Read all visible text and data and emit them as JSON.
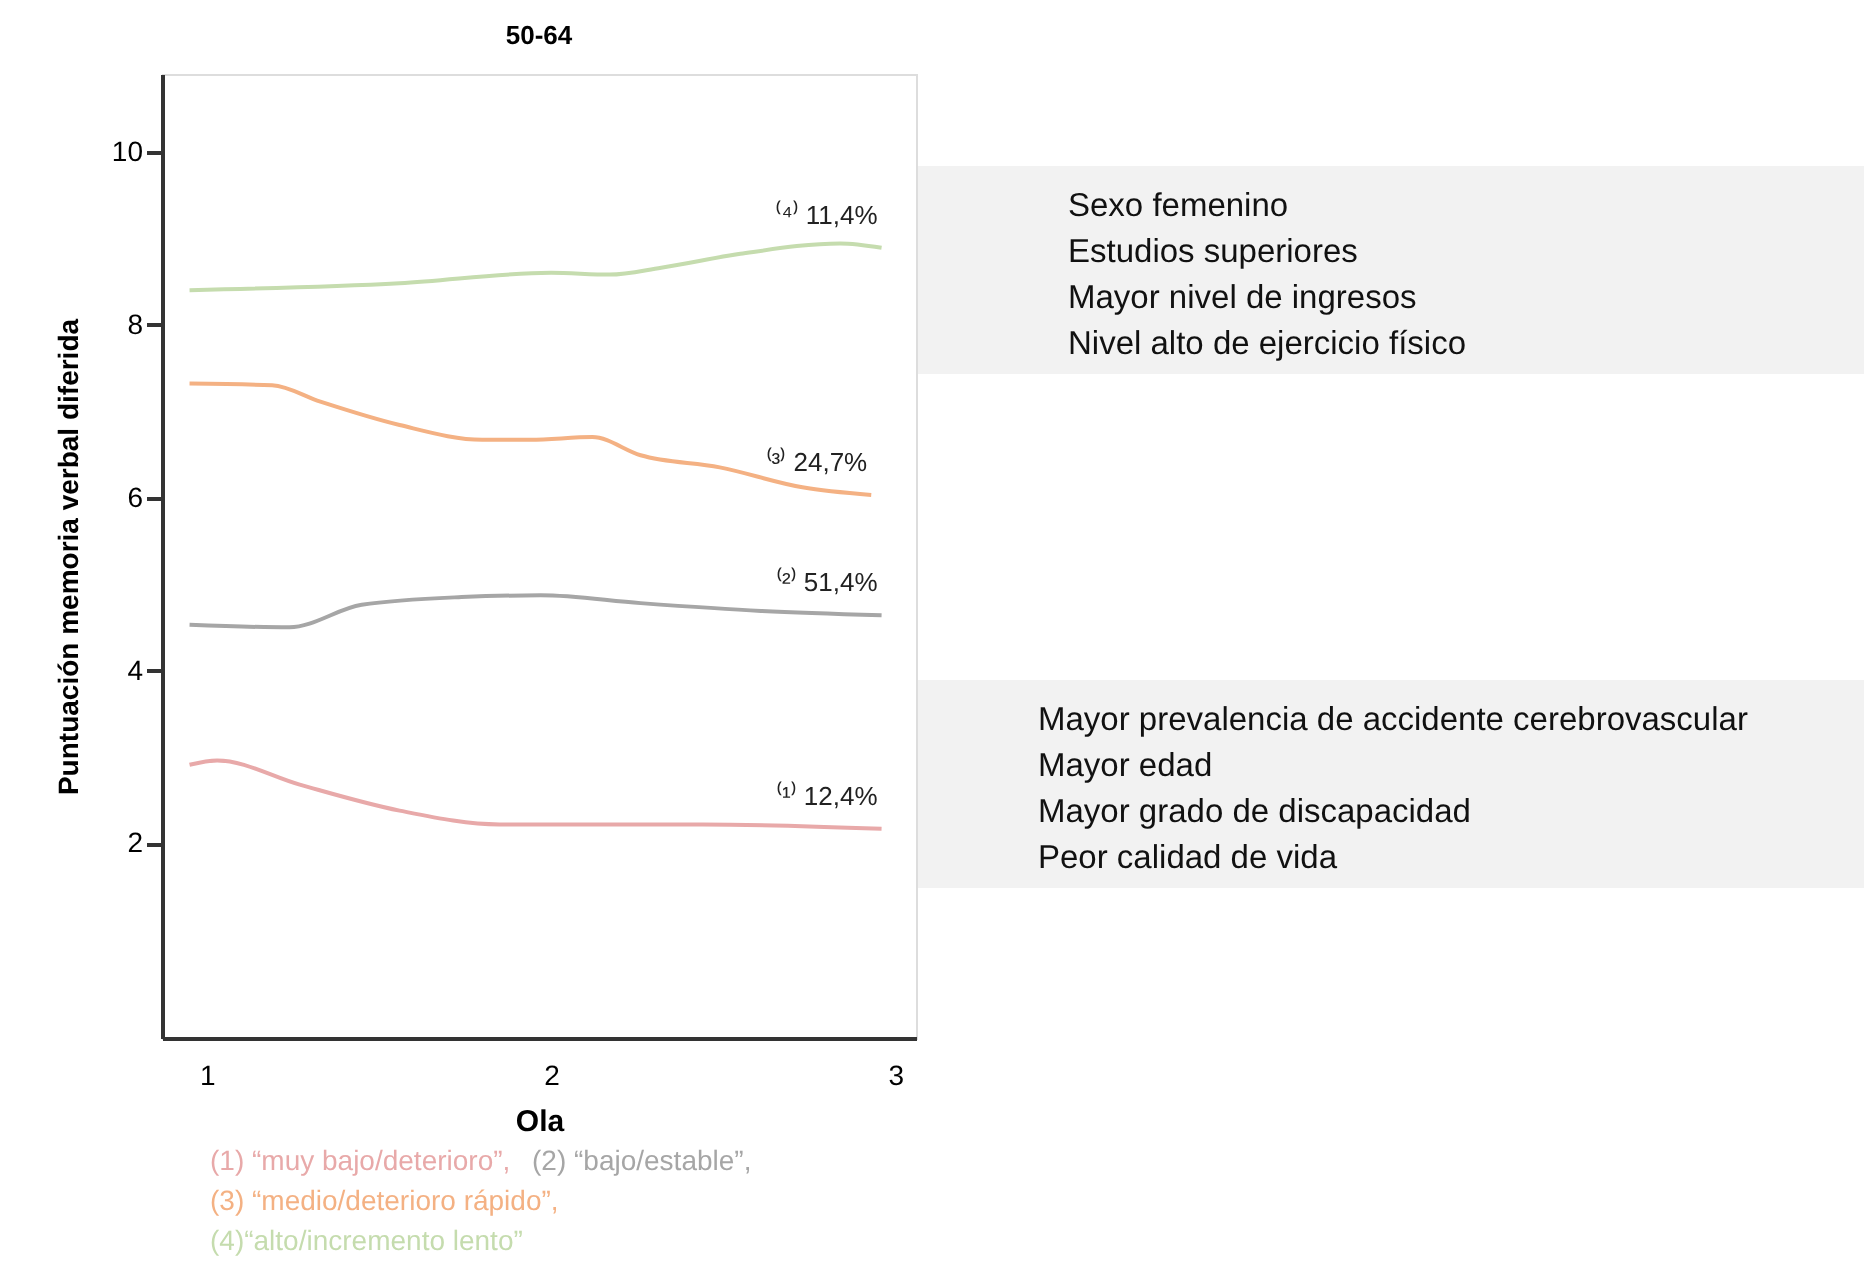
{
  "chart_data": {
    "type": "line",
    "title": "50-64",
    "xlabel": "Ola",
    "ylabel": "Puntuación memoria verbal diferida",
    "xlim": [
      0.87,
      3.06
    ],
    "xticks": [
      1,
      2,
      3
    ],
    "ylim": [
      -0.25,
      10.9
    ],
    "yticks": [
      2,
      4,
      6,
      8,
      10
    ],
    "grid": false,
    "legend": "bottom",
    "marker": "none",
    "line_style": "solid",
    "series": [
      {
        "name": "(1) “muy bajo/deterioro”,",
        "color": "#e8a9a9",
        "x": [
          0.95,
          1.03,
          1.27,
          1.56,
          1.85,
          2.15,
          2.44,
          2.96
        ],
        "values": [
          2.91,
          2.96,
          2.68,
          2.38,
          2.22,
          2.22,
          2.22,
          2.17
        ]
      },
      {
        "name": "(2) “bajo/estable”,",
        "color": "#a6a6a6",
        "x": [
          0.95,
          1.24,
          1.45,
          1.74,
          1.97,
          2.26,
          2.61,
          2.96
        ],
        "values": [
          4.53,
          4.5,
          4.76,
          4.85,
          4.87,
          4.78,
          4.69,
          4.64
        ]
      },
      {
        "name": "(3) “medio/deterioro rápido”,",
        "color": "#f4b183",
        "x": [
          0.95,
          1.19,
          1.33,
          1.56,
          1.8,
          1.94,
          2.12,
          2.26,
          2.49,
          2.73,
          2.93
        ],
        "values": [
          7.32,
          7.3,
          7.11,
          6.84,
          6.67,
          6.67,
          6.7,
          6.49,
          6.35,
          6.12,
          6.03
        ]
      },
      {
        "name": "(4)“alto/incremento lento”",
        "color": "#c5dcae",
        "x": [
          0.95,
          1.56,
          2.0,
          2.17,
          2.32,
          2.55,
          2.84,
          2.96
        ],
        "values": [
          8.4,
          8.48,
          8.6,
          8.58,
          8.66,
          8.82,
          8.94,
          8.89
        ]
      }
    ],
    "annotations": [
      "⁽⁴⁾ 11,4%",
      "⁽³⁾ 24,7%",
      "⁽²⁾ 51,4%",
      "⁽¹⁾ 12,4%",
      "Sexo femenino",
      "Estudios superiores",
      "Mayor nivel de ingresos",
      "Nivel alto de ejercicio físico",
      "Mayor prevalencia de accidente cerebrovascular",
      "Mayor edad",
      "Mayor grado de discapacidad",
      "Peor calidad de vida"
    ]
  }
}
